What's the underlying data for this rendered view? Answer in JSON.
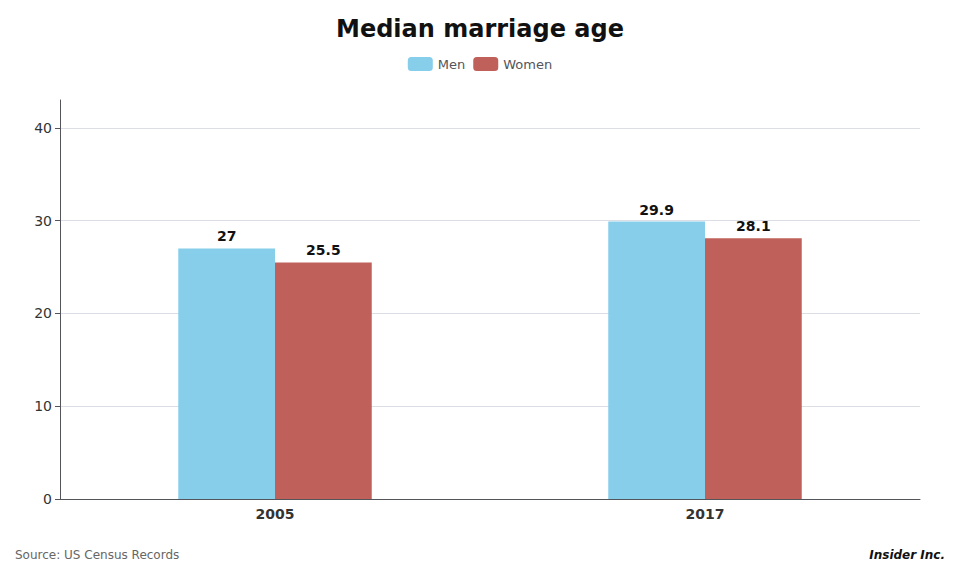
{
  "chart_data": {
    "type": "bar",
    "title": "Median marriage age",
    "categories": [
      "2005",
      "2017"
    ],
    "series": [
      {
        "name": "Men",
        "color": "#87CEEB",
        "values": [
          27,
          29.9
        ]
      },
      {
        "name": "Women",
        "color": "#C0605A",
        "values": [
          25.5,
          28.1
        ]
      }
    ],
    "ylim": [
      0,
      43
    ],
    "yticks": [
      0,
      10,
      20,
      30,
      40
    ],
    "grid": true,
    "legend": "top",
    "data_labels": true,
    "annotations": [
      "Source: US Census Records",
      "Insider Inc."
    ]
  }
}
